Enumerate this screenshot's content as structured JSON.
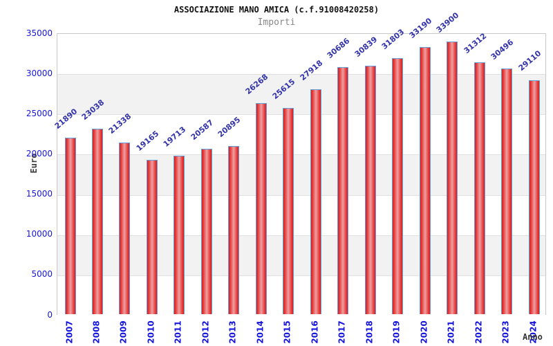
{
  "chart_data": {
    "type": "bar",
    "title": "ASSOCIAZIONE MANO AMICA (c.f.91008420258)",
    "subtitle": "Importi",
    "xlabel": "Anno",
    "ylabel": "Euro",
    "categories": [
      "2007",
      "2008",
      "2009",
      "2010",
      "2011",
      "2012",
      "2013",
      "2014",
      "2015",
      "2016",
      "2017",
      "2018",
      "2019",
      "2020",
      "2021",
      "2022",
      "2023",
      "2024"
    ],
    "values": [
      21890,
      23038,
      21338,
      19165,
      19713,
      20587,
      20895,
      26268,
      25615,
      27918,
      30686,
      30839,
      31803,
      33190,
      33900,
      31312,
      30496,
      29110
    ],
    "ylim": [
      0,
      35000
    ],
    "ytick_step": 5000,
    "yticks": [
      0,
      5000,
      10000,
      15000,
      20000,
      25000,
      30000,
      35000
    ],
    "grid": "alternating-horizontal-bands",
    "legend": null,
    "colors": {
      "bar_edge_color": "#d81e1e",
      "bar_center_color": "#eda2a2",
      "bar_border": "#5ea3df",
      "value_label": "#3333aa",
      "axis_tick_label": "#1414dd",
      "axis_title": "#3c3c3c",
      "title": "#111111",
      "subtitle": "#878787",
      "band_fill": "#f2f2f2",
      "band_fill_alt": "#ffffff"
    }
  }
}
